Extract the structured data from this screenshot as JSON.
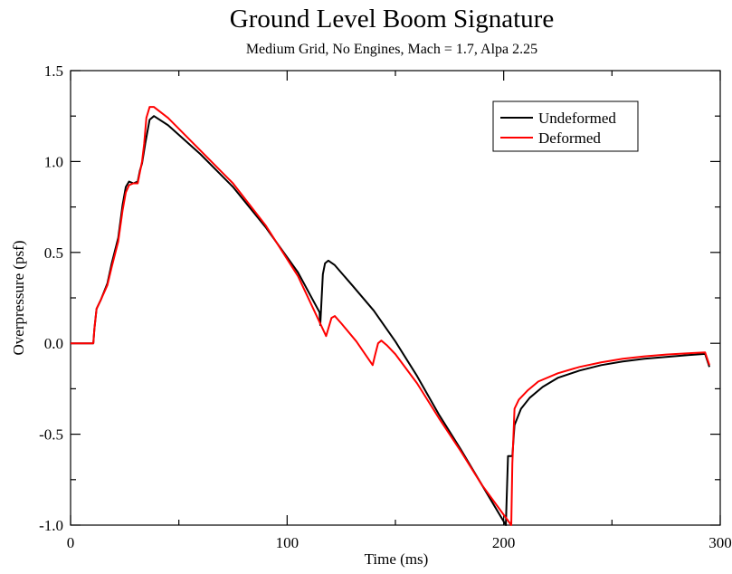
{
  "chart_data": {
    "type": "line",
    "title": "Ground Level Boom Signature",
    "subtitle": "Medium Grid, No Engines, Mach = 1.7, Alpa 2.25",
    "xlabel": "Time (ms)",
    "ylabel": "Overpressure (psf)",
    "xlim": [
      0,
      300
    ],
    "ylim": [
      -1.0,
      1.5
    ],
    "x_ticks": [
      0,
      100,
      200,
      300
    ],
    "x_tick_labels": [
      "0",
      "100",
      "200",
      "300"
    ],
    "y_ticks": [
      -1.0,
      -0.5,
      0.0,
      0.5,
      1.0,
      1.5
    ],
    "y_tick_labels": [
      "-1.0",
      "-0.5",
      "0.0",
      "0.5",
      "1.0",
      "1.5"
    ],
    "grid": false,
    "legend_position": "top-right",
    "series": [
      {
        "name": "Undeformed",
        "color": "#000000",
        "points": [
          [
            0,
            0.0
          ],
          [
            10.5,
            0.0
          ],
          [
            11,
            0.08
          ],
          [
            12,
            0.19
          ],
          [
            14,
            0.24
          ],
          [
            17,
            0.33
          ],
          [
            19,
            0.44
          ],
          [
            22,
            0.58
          ],
          [
            24,
            0.76
          ],
          [
            25.5,
            0.86
          ],
          [
            27,
            0.89
          ],
          [
            29,
            0.88
          ],
          [
            31,
            0.89
          ],
          [
            32,
            0.95
          ],
          [
            33,
            0.99
          ],
          [
            34.5,
            1.1
          ],
          [
            36.5,
            1.23
          ],
          [
            38.5,
            1.25
          ],
          [
            45,
            1.2
          ],
          [
            60,
            1.04
          ],
          [
            75,
            0.86
          ],
          [
            90,
            0.64
          ],
          [
            105,
            0.39
          ],
          [
            115,
            0.17
          ],
          [
            115.3,
            0.1
          ],
          [
            116.5,
            0.38
          ],
          [
            117.5,
            0.44
          ],
          [
            119,
            0.455
          ],
          [
            122,
            0.43
          ],
          [
            130,
            0.32
          ],
          [
            140,
            0.18
          ],
          [
            150,
            0.01
          ],
          [
            160,
            -0.18
          ],
          [
            170,
            -0.39
          ],
          [
            180,
            -0.58
          ],
          [
            190,
            -0.78
          ],
          [
            201,
            -1.0
          ],
          [
            202,
            -0.62
          ],
          [
            203,
            -0.62
          ],
          [
            204,
            -0.62
          ],
          [
            205,
            -0.45
          ],
          [
            208,
            -0.36
          ],
          [
            212,
            -0.3
          ],
          [
            218,
            -0.24
          ],
          [
            225,
            -0.19
          ],
          [
            235,
            -0.15
          ],
          [
            245,
            -0.12
          ],
          [
            255,
            -0.1
          ],
          [
            265,
            -0.085
          ],
          [
            275,
            -0.075
          ],
          [
            285,
            -0.065
          ],
          [
            293,
            -0.058
          ],
          [
            295,
            -0.13
          ]
        ]
      },
      {
        "name": "Deformed",
        "color": "#ff0000",
        "points": [
          [
            0,
            0.0
          ],
          [
            10.5,
            0.0
          ],
          [
            11,
            0.08
          ],
          [
            12,
            0.19
          ],
          [
            14,
            0.24
          ],
          [
            17,
            0.32
          ],
          [
            19,
            0.42
          ],
          [
            22,
            0.56
          ],
          [
            24,
            0.73
          ],
          [
            25.5,
            0.83
          ],
          [
            27,
            0.87
          ],
          [
            29,
            0.88
          ],
          [
            31,
            0.88
          ],
          [
            32,
            0.94
          ],
          [
            33,
            1.0
          ],
          [
            34,
            1.1
          ],
          [
            35,
            1.24
          ],
          [
            36.5,
            1.3
          ],
          [
            38.5,
            1.3
          ],
          [
            45,
            1.24
          ],
          [
            60,
            1.06
          ],
          [
            75,
            0.88
          ],
          [
            90,
            0.65
          ],
          [
            105,
            0.37
          ],
          [
            118,
            0.04
          ],
          [
            119,
            0.08
          ],
          [
            120.5,
            0.14
          ],
          [
            122,
            0.15
          ],
          [
            125,
            0.11
          ],
          [
            132,
            0.01
          ],
          [
            139.5,
            -0.12
          ],
          [
            140.5,
            -0.07
          ],
          [
            142,
            0.0
          ],
          [
            143.5,
            0.015
          ],
          [
            146,
            -0.01
          ],
          [
            150,
            -0.06
          ],
          [
            160,
            -0.22
          ],
          [
            170,
            -0.41
          ],
          [
            180,
            -0.59
          ],
          [
            190,
            -0.78
          ],
          [
            203.5,
            -1.0
          ],
          [
            204,
            -0.66
          ],
          [
            205,
            -0.36
          ],
          [
            207,
            -0.31
          ],
          [
            211,
            -0.26
          ],
          [
            216,
            -0.21
          ],
          [
            225,
            -0.165
          ],
          [
            235,
            -0.13
          ],
          [
            245,
            -0.105
          ],
          [
            255,
            -0.085
          ],
          [
            265,
            -0.072
          ],
          [
            275,
            -0.062
          ],
          [
            285,
            -0.055
          ],
          [
            293,
            -0.05
          ],
          [
            295,
            -0.12
          ]
        ]
      }
    ]
  }
}
